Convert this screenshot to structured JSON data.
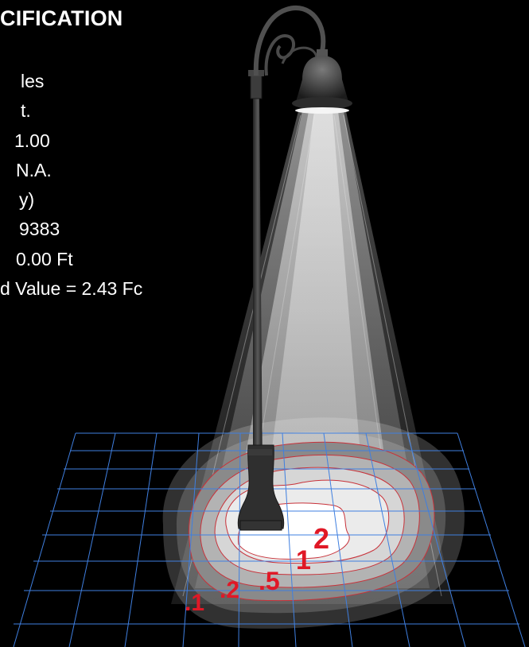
{
  "spec": {
    "title": "CIFICATION",
    "lines": [
      "les",
      "t.",
      "1.00",
      "N.A.",
      "y)",
      "9383",
      "0.00 Ft",
      "d Value = 2.43 Fc"
    ]
  },
  "contours": [
    {
      "label": ".1",
      "color": "#e01826"
    },
    {
      "label": ".2",
      "color": "#e01826"
    },
    {
      "label": ".5",
      "color": "#e01826"
    },
    {
      "label": "1",
      "color": "#e01826"
    },
    {
      "label": "2",
      "color": "#e01826"
    }
  ],
  "colors": {
    "background": "#000000",
    "grid": "#3f7fe0",
    "contour_line": "#c8323a",
    "contour_label": "#e01826",
    "pole": "#3a3a3a",
    "text": "#ffffff"
  }
}
